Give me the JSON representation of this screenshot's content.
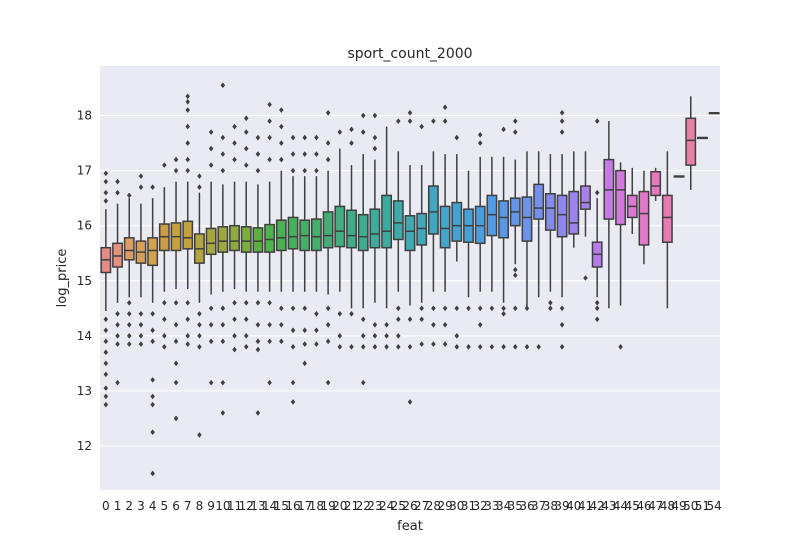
{
  "chart_data": {
    "type": "box",
    "title": "sport_count_2000",
    "xlabel": "feat",
    "ylabel": "log_price",
    "ylim": [
      11.2,
      18.9
    ],
    "yticks": [
      12,
      13,
      14,
      15,
      16,
      17,
      18
    ],
    "grid": true,
    "categories": [
      "0",
      "1",
      "2",
      "3",
      "4",
      "5",
      "6",
      "7",
      "8",
      "9",
      "10",
      "11",
      "12",
      "13",
      "14",
      "15",
      "16",
      "17",
      "18",
      "19",
      "20",
      "21",
      "22",
      "23",
      "24",
      "25",
      "26",
      "27",
      "28",
      "29",
      "30",
      "31",
      "32",
      "33",
      "34",
      "35",
      "36",
      "37",
      "38",
      "39",
      "40",
      "41",
      "42",
      "43",
      "44",
      "45",
      "46",
      "47",
      "48",
      "49",
      "50",
      "51",
      "54"
    ],
    "boxes": [
      {
        "cat": "0",
        "q1": 15.15,
        "median": 15.38,
        "q3": 15.6,
        "wlo": 14.45,
        "whi": 16.3,
        "color": "#e58a84",
        "outliers": [
          16.95,
          16.8,
          16.6,
          16.45,
          14.3,
          14.1,
          13.9,
          13.7,
          13.5,
          13.3,
          13.05,
          12.9,
          12.75
        ]
      },
      {
        "cat": "1",
        "q1": 15.25,
        "median": 15.45,
        "q3": 15.68,
        "wlo": 14.6,
        "whi": 16.4,
        "color": "#e5917e",
        "outliers": [
          16.8,
          16.6,
          14.4,
          14.2,
          14.0,
          13.85,
          13.15
        ]
      },
      {
        "cat": "2",
        "q1": 15.38,
        "median": 15.55,
        "q3": 15.78,
        "wlo": 14.7,
        "whi": 16.5,
        "color": "#dc9c66",
        "outliers": [
          16.55,
          14.6,
          14.4,
          14.2,
          14.0,
          13.85
        ]
      },
      {
        "cat": "3",
        "q1": 15.32,
        "median": 15.52,
        "q3": 15.72,
        "wlo": 14.7,
        "whi": 16.4,
        "color": "#d79f55",
        "outliers": [
          16.9,
          16.7,
          14.4,
          14.2,
          14.0,
          13.85
        ]
      },
      {
        "cat": "4",
        "q1": 15.28,
        "median": 15.55,
        "q3": 15.78,
        "wlo": 14.6,
        "whi": 16.5,
        "color": "#d4a24e",
        "outliers": [
          16.7,
          14.4,
          14.1,
          13.9,
          13.2,
          12.9,
          12.75,
          12.25,
          11.5
        ]
      },
      {
        "cat": "5",
        "q1": 15.55,
        "median": 15.8,
        "q3": 16.03,
        "wlo": 14.8,
        "whi": 16.7,
        "color": "#cb9d45",
        "outliers": [
          17.1,
          14.6,
          14.3,
          14.0,
          13.8
        ]
      },
      {
        "cat": "6",
        "q1": 15.55,
        "median": 15.8,
        "q3": 16.05,
        "wlo": 14.85,
        "whi": 16.8,
        "color": "#c7a040",
        "outliers": [
          17.2,
          17.0,
          14.6,
          14.2,
          13.9,
          13.5,
          13.15,
          12.5
        ]
      },
      {
        "cat": "7",
        "q1": 15.58,
        "median": 15.78,
        "q3": 16.08,
        "wlo": 14.85,
        "whi": 16.8,
        "color": "#c3a13d",
        "outliers": [
          18.35,
          18.25,
          18.1,
          17.8,
          17.5,
          17.2,
          17.0,
          14.6,
          14.3,
          14.0,
          13.85
        ]
      },
      {
        "cat": "8",
        "q1": 15.32,
        "median": 15.58,
        "q3": 15.85,
        "wlo": 14.6,
        "whi": 16.6,
        "color": "#b2a43f",
        "outliers": [
          16.9,
          16.7,
          14.4,
          14.2,
          14.0,
          13.8,
          12.2
        ]
      },
      {
        "cat": "9",
        "q1": 15.48,
        "median": 15.68,
        "q3": 15.95,
        "wlo": 14.75,
        "whi": 16.8,
        "color": "#a8a63f",
        "outliers": [
          17.7,
          17.4,
          17.1,
          14.5,
          14.2,
          13.9,
          13.15
        ]
      },
      {
        "cat": "10",
        "q1": 15.52,
        "median": 15.72,
        "q3": 15.98,
        "wlo": 14.8,
        "whi": 16.75,
        "color": "#9ca83f",
        "outliers": [
          18.55,
          17.6,
          17.3,
          17.0,
          14.5,
          14.2,
          13.9,
          13.15,
          12.6
        ]
      },
      {
        "cat": "11",
        "q1": 15.55,
        "median": 15.72,
        "q3": 16.0,
        "wlo": 14.85,
        "whi": 16.8,
        "color": "#8fab3f",
        "outliers": [
          17.8,
          17.5,
          17.2,
          14.6,
          14.3,
          14.0,
          13.75
        ]
      },
      {
        "cat": "12",
        "q1": 15.52,
        "median": 15.72,
        "q3": 15.98,
        "wlo": 14.8,
        "whi": 16.8,
        "color": "#7cae3e",
        "outliers": [
          17.95,
          17.7,
          17.4,
          17.1,
          14.6,
          14.3,
          14.0,
          13.8
        ]
      },
      {
        "cat": "13",
        "q1": 15.52,
        "median": 15.72,
        "q3": 15.96,
        "wlo": 14.8,
        "whi": 16.75,
        "color": "#5ab140",
        "outliers": [
          17.6,
          17.3,
          17.0,
          14.6,
          14.2,
          13.9,
          13.75,
          12.6
        ]
      },
      {
        "cat": "14",
        "q1": 15.52,
        "median": 15.75,
        "q3": 16.02,
        "wlo": 14.8,
        "whi": 16.8,
        "color": "#4eb34a",
        "outliers": [
          18.2,
          17.9,
          17.6,
          17.2,
          14.6,
          14.2,
          13.9,
          13.15
        ]
      },
      {
        "cat": "15",
        "q1": 15.55,
        "median": 15.78,
        "q3": 16.1,
        "wlo": 14.8,
        "whi": 17.0,
        "color": "#47b153",
        "outliers": [
          18.1,
          17.8,
          17.5,
          17.2,
          14.5,
          14.2,
          13.9
        ]
      },
      {
        "cat": "16",
        "q1": 15.58,
        "median": 15.8,
        "q3": 16.15,
        "wlo": 14.8,
        "whi": 16.9,
        "color": "#46b05b",
        "outliers": [
          17.6,
          17.3,
          17.0,
          14.5,
          14.1,
          13.8,
          13.15,
          12.8
        ]
      },
      {
        "cat": "17",
        "q1": 15.55,
        "median": 15.82,
        "q3": 16.1,
        "wlo": 14.8,
        "whi": 16.9,
        "color": "#46af63",
        "outliers": [
          17.6,
          17.3,
          17.0,
          14.5,
          14.1,
          13.85,
          13.5
        ]
      },
      {
        "cat": "18",
        "q1": 15.55,
        "median": 15.8,
        "q3": 16.12,
        "wlo": 14.8,
        "whi": 16.9,
        "color": "#45ae6c",
        "outliers": [
          17.6,
          17.3,
          17.0,
          14.4,
          14.1,
          13.85
        ]
      },
      {
        "cat": "19",
        "q1": 15.6,
        "median": 15.82,
        "q3": 16.25,
        "wlo": 14.75,
        "whi": 17.0,
        "color": "#44ad76",
        "outliers": [
          18.05,
          17.5,
          17.2,
          14.5,
          14.2,
          13.9,
          13.15
        ]
      },
      {
        "cat": "20",
        "q1": 15.62,
        "median": 15.9,
        "q3": 16.35,
        "wlo": 14.8,
        "whi": 17.4,
        "color": "#42ad7f",
        "outliers": [
          17.7,
          14.4,
          14.0,
          13.8
        ]
      },
      {
        "cat": "21",
        "q1": 15.6,
        "median": 15.82,
        "q3": 16.28,
        "wlo": 14.5,
        "whi": 17.1,
        "color": "#3fad89",
        "outliers": [
          17.75,
          17.5,
          14.4,
          13.8
        ]
      },
      {
        "cat": "22",
        "q1": 15.55,
        "median": 15.8,
        "q3": 16.2,
        "wlo": 14.5,
        "whi": 17.3,
        "color": "#3ead91",
        "outliers": [
          18.0,
          17.7,
          14.3,
          14.0,
          13.8,
          13.15
        ]
      },
      {
        "cat": "23",
        "q1": 15.6,
        "median": 15.85,
        "q3": 16.3,
        "wlo": 14.6,
        "whi": 17.2,
        "color": "#3dad99",
        "outliers": [
          18.0,
          17.6,
          17.4,
          14.2,
          14.0,
          13.8
        ]
      },
      {
        "cat": "24",
        "q1": 15.6,
        "median": 15.9,
        "q3": 16.55,
        "wlo": 14.5,
        "whi": 17.8,
        "color": "#3daca0",
        "outliers": [
          14.2,
          14.0,
          13.8
        ]
      },
      {
        "cat": "25",
        "q1": 15.75,
        "median": 16.05,
        "q3": 16.45,
        "wlo": 14.8,
        "whi": 17.35,
        "color": "#3dabab",
        "outliers": [
          17.9,
          14.5,
          14.3,
          14.0,
          13.8
        ]
      },
      {
        "cat": "26",
        "q1": 15.55,
        "median": 15.9,
        "q3": 16.18,
        "wlo": 14.55,
        "whi": 17.1,
        "color": "#3faab3",
        "outliers": [
          18.05,
          17.9,
          14.3,
          13.8,
          12.8
        ]
      },
      {
        "cat": "27",
        "q1": 15.65,
        "median": 15.95,
        "q3": 16.22,
        "wlo": 14.6,
        "whi": 17.1,
        "color": "#40a9ba",
        "outliers": [
          17.8,
          14.5,
          14.3,
          13.85
        ]
      },
      {
        "cat": "28",
        "q1": 15.85,
        "median": 16.25,
        "q3": 16.72,
        "wlo": 14.8,
        "whi": 17.35,
        "color": "#41a7c1",
        "outliers": [
          17.9,
          14.5,
          14.2,
          13.85
        ]
      },
      {
        "cat": "29",
        "q1": 15.6,
        "median": 15.95,
        "q3": 16.35,
        "wlo": 14.8,
        "whi": 17.3,
        "color": "#43a5c9",
        "outliers": [
          18.15,
          17.9,
          14.5,
          14.2,
          13.85
        ]
      },
      {
        "cat": "30",
        "q1": 15.72,
        "median": 16.0,
        "q3": 16.42,
        "wlo": 15.35,
        "whi": 17.3,
        "color": "#45a3d0",
        "outliers": [
          17.6,
          14.5,
          14.0,
          13.8
        ]
      },
      {
        "cat": "31",
        "q1": 15.7,
        "median": 16.0,
        "q3": 16.3,
        "wlo": 14.7,
        "whi": 17.0,
        "color": "#47a1d6",
        "outliers": [
          14.5,
          13.8
        ]
      },
      {
        "cat": "32",
        "q1": 15.68,
        "median": 16.0,
        "q3": 16.35,
        "wlo": 14.8,
        "whi": 17.25,
        "color": "#4b9edd",
        "outliers": [
          17.65,
          17.5,
          14.5,
          14.2,
          13.8
        ]
      },
      {
        "cat": "33",
        "q1": 15.82,
        "median": 16.2,
        "q3": 16.55,
        "wlo": 14.8,
        "whi": 17.25,
        "color": "#519be3",
        "outliers": [
          14.5,
          13.8
        ]
      },
      {
        "cat": "34",
        "q1": 15.78,
        "median": 16.15,
        "q3": 16.45,
        "wlo": 14.6,
        "whi": 17.25,
        "color": "#5898e6",
        "outliers": [
          17.75,
          14.5,
          14.4,
          13.8
        ]
      },
      {
        "cat": "35",
        "q1": 16.0,
        "median": 16.25,
        "q3": 16.5,
        "wlo": 15.3,
        "whi": 17.2,
        "color": "#6195e8",
        "outliers": [
          17.9,
          17.7,
          15.2,
          15.1,
          14.5,
          13.8
        ]
      },
      {
        "cat": "36",
        "q1": 15.72,
        "median": 16.15,
        "q3": 16.52,
        "wlo": 14.5,
        "whi": 17.35,
        "color": "#6c92ea",
        "outliers": [
          14.5,
          13.8
        ]
      },
      {
        "cat": "37",
        "q1": 16.12,
        "median": 16.32,
        "q3": 16.75,
        "wlo": 14.7,
        "whi": 17.35,
        "color": "#778fec",
        "outliers": [
          13.8
        ]
      },
      {
        "cat": "38",
        "q1": 15.92,
        "median": 16.32,
        "q3": 16.58,
        "wlo": 14.8,
        "whi": 17.3,
        "color": "#838cec",
        "outliers": [
          14.6,
          14.5
        ]
      },
      {
        "cat": "39",
        "q1": 15.8,
        "median": 16.2,
        "q3": 16.55,
        "wlo": 14.7,
        "whi": 17.3,
        "color": "#8e88ec",
        "outliers": [
          18.05,
          17.9,
          17.7,
          14.5,
          14.2,
          13.8
        ]
      },
      {
        "cat": "40",
        "q1": 15.85,
        "median": 16.05,
        "q3": 16.62,
        "wlo": 15.6,
        "whi": 17.35,
        "color": "#9b84ec",
        "outliers": []
      },
      {
        "cat": "41",
        "q1": 16.3,
        "median": 16.42,
        "q3": 16.72,
        "wlo": 15.8,
        "whi": 17.35,
        "color": "#a981ea",
        "outliers": [
          15.05
        ]
      },
      {
        "cat": "42",
        "q1": 15.25,
        "median": 15.48,
        "q3": 15.7,
        "wlo": 14.7,
        "whi": 16.5,
        "color": "#b67de8",
        "outliers": [
          17.9,
          16.6,
          14.6,
          14.5,
          14.3
        ]
      },
      {
        "cat": "43",
        "q1": 16.12,
        "median": 16.65,
        "q3": 17.2,
        "wlo": 14.5,
        "whi": 17.9,
        "color": "#c77ae3",
        "outliers": []
      },
      {
        "cat": "44",
        "q1": 16.02,
        "median": 16.65,
        "q3": 17.0,
        "wlo": 14.55,
        "whi": 17.15,
        "color": "#d378dd",
        "outliers": [
          13.8
        ]
      },
      {
        "cat": "45",
        "q1": 16.15,
        "median": 16.35,
        "q3": 16.55,
        "wlo": 15.85,
        "whi": 17.05,
        "color": "#dc77d3",
        "outliers": []
      },
      {
        "cat": "46",
        "q1": 15.65,
        "median": 16.22,
        "q3": 16.62,
        "wlo": 15.3,
        "whi": 17.0,
        "color": "#e278c8",
        "outliers": []
      },
      {
        "cat": "47",
        "q1": 16.55,
        "median": 16.72,
        "q3": 16.98,
        "wlo": 16.45,
        "whi": 17.05,
        "color": "#e679be",
        "outliers": []
      },
      {
        "cat": "48",
        "q1": 15.7,
        "median": 16.15,
        "q3": 16.55,
        "wlo": 14.5,
        "whi": 17.35,
        "color": "#e87bb4",
        "outliers": []
      },
      {
        "cat": "49",
        "q1": 16.9,
        "median": 16.9,
        "q3": 16.9,
        "wlo": 16.9,
        "whi": 16.9,
        "color": "#e97dac",
        "outliers": []
      },
      {
        "cat": "50",
        "q1": 17.1,
        "median": 17.55,
        "q3": 17.95,
        "wlo": 16.65,
        "whi": 18.35,
        "color": "#ea80a4",
        "outliers": []
      },
      {
        "cat": "51",
        "q1": 17.6,
        "median": 17.6,
        "q3": 17.6,
        "wlo": 17.6,
        "whi": 17.6,
        "color": "#ea829d",
        "outliers": []
      },
      {
        "cat": "54",
        "q1": 18.05,
        "median": 18.05,
        "q3": 18.05,
        "wlo": 18.05,
        "whi": 18.05,
        "color": "#eb8597",
        "outliers": []
      }
    ]
  }
}
